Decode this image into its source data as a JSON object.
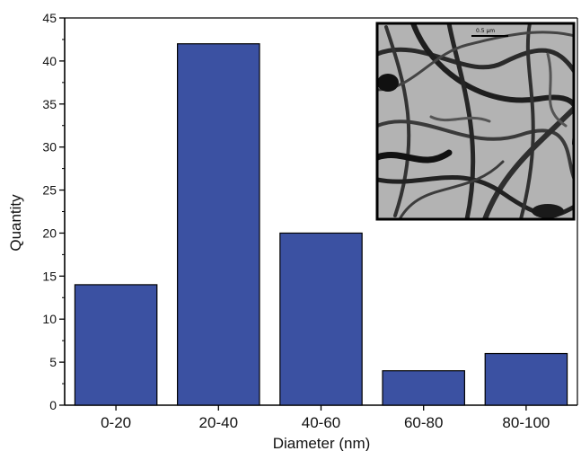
{
  "chart_data": {
    "type": "bar",
    "title": "",
    "xlabel": "Diameter (nm)",
    "ylabel": "Quantity",
    "categories": [
      "0-20",
      "20-40",
      "40-60",
      "60-80",
      "80-100"
    ],
    "values": [
      14,
      42,
      20,
      4,
      6
    ],
    "ylim": [
      0,
      45
    ],
    "yticks": [
      0,
      5,
      10,
      15,
      20,
      25,
      30,
      35,
      40,
      45
    ],
    "grid": false,
    "bar_color": "#3b51a2",
    "inset": {
      "kind": "TEM micrograph of nanofibers",
      "scale_bar_label": "0.5 μm"
    }
  }
}
